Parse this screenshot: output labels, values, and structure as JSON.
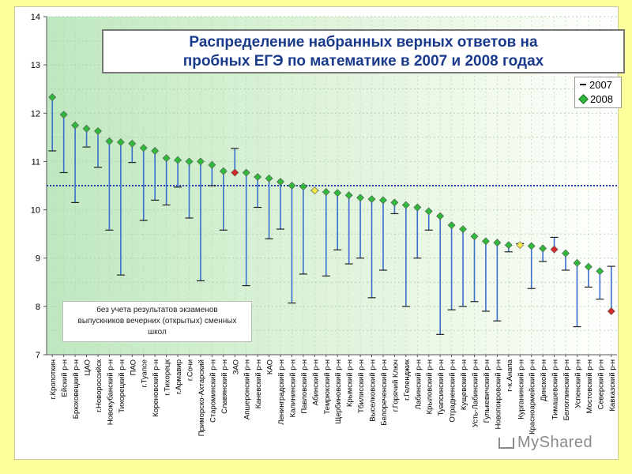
{
  "title": {
    "line1": "Распределение набранных верных ответов на",
    "line2": "пробных ЕГЭ по математике в 2007 и 2008 годах"
  },
  "legend": {
    "s2007": "2007",
    "s2008": "2008"
  },
  "note": {
    "line1": "без учета результатов экзаменов",
    "line2": "выпускников вечерних (открытых) сменных",
    "line3": "школ"
  },
  "watermark": "MyShared",
  "colors": {
    "bar": "#3a6fd0",
    "marker": "#2fb83a",
    "marker_red": "#d42a2a",
    "marker_yellow": "#f5e84a",
    "avg": "#2a3fa8"
  },
  "chart_data": {
    "type": "scatter",
    "title": "Распределение набранных верных ответов на пробных ЕГЭ по математике в 2007 и 2008 годах",
    "ylim": [
      7,
      14
    ],
    "yticks": [
      7,
      8,
      9,
      10,
      11,
      12,
      13,
      14
    ],
    "average_line": 10.5,
    "series_names": [
      "2007",
      "2008"
    ],
    "categories": [
      "г.Кропоткин",
      "Ейский р-н",
      "Брюховецкий р-н",
      "ЦАО",
      "г.Новороссийск",
      "Новокубанский р-н",
      "Тихорецкий р-н",
      "ПАО",
      "г.Туапсе",
      "Кореновский р-н",
      "г.Тихорецк",
      "г.Армавир",
      "г.Сочи",
      "Приморско-Ахтарский",
      "Староминский р-н",
      "Славянский р-н",
      "ЗАО",
      "Апшеронский р-н",
      "Каневский р-н",
      "КАО",
      "Ленинградский р-н",
      "Калининский р-н",
      "Павловский р-н",
      "Абинский р-н",
      "Темрюкский р-н",
      "Щербиновский р-н",
      "Крымский р-н",
      "Тбилисский р-н",
      "Выселковский р-н",
      "Белореченский р-н",
      "г.Горячий Ключ",
      "г.Геленджик",
      "Лабинский р-н",
      "Крыловский р-н",
      "Туапсинский р-н",
      "Отрадненский р-н",
      "Кущевский р-н",
      "Усть-Лабинский р-н",
      "Гулькевичский р-н",
      "Новопокровский р-н",
      "г-к.Анапа",
      "Курганинский р-н",
      "Красноармейский р-н",
      "Динской р-н",
      "Тимашевский р-н",
      "Белоглинский р-н",
      "Успенский р-н",
      "Мостовский р-н",
      "Северский р-н",
      "Кавказский р-н"
    ],
    "values_2008": [
      12.33,
      11.97,
      11.75,
      11.68,
      11.63,
      11.42,
      11.4,
      11.37,
      11.28,
      11.22,
      11.07,
      11.03,
      11.0,
      11.0,
      10.93,
      10.8,
      10.77,
      10.77,
      10.68,
      10.65,
      10.58,
      10.5,
      10.48,
      10.4,
      10.37,
      10.35,
      10.3,
      10.25,
      10.22,
      10.2,
      10.15,
      10.1,
      10.05,
      9.97,
      9.87,
      9.68,
      9.6,
      9.45,
      9.35,
      9.32,
      9.27,
      9.27,
      9.25,
      9.2,
      9.18,
      9.1,
      8.9,
      8.82,
      8.73,
      7.9
    ],
    "values_2007": [
      11.22,
      10.77,
      10.15,
      11.3,
      10.88,
      9.58,
      8.65,
      10.98,
      9.78,
      10.2,
      10.1,
      10.47,
      9.83,
      8.53,
      10.5,
      9.58,
      11.27,
      8.43,
      10.05,
      9.4,
      9.6,
      8.07,
      8.67,
      10.4,
      8.63,
      9.17,
      8.88,
      9.0,
      8.18,
      8.75,
      9.92,
      8.0,
      9.0,
      9.58,
      7.42,
      7.93,
      8.0,
      8.1,
      7.9,
      7.7,
      9.13,
      9.3,
      8.37,
      8.93,
      9.43,
      8.75,
      7.58,
      8.4,
      8.15,
      8.83
    ],
    "marker_types": [
      "g",
      "g",
      "g",
      "g",
      "g",
      "g",
      "g",
      "g",
      "g",
      "g",
      "g",
      "g",
      "g",
      "g",
      "g",
      "g",
      "r",
      "g",
      "g",
      "g",
      "g",
      "g",
      "g",
      "y",
      "g",
      "g",
      "g",
      "g",
      "g",
      "g",
      "g",
      "g",
      "g",
      "g",
      "g",
      "g",
      "g",
      "g",
      "g",
      "g",
      "g",
      "y",
      "g",
      "g",
      "r",
      "g",
      "g",
      "g",
      "g",
      "r"
    ]
  }
}
